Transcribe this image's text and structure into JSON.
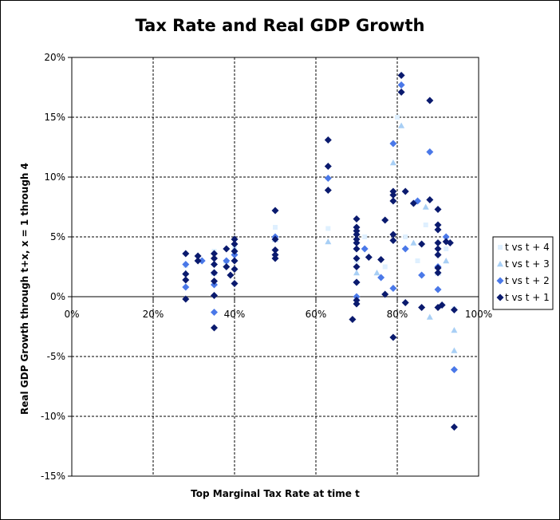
{
  "chart_data": {
    "type": "scatter",
    "title": "Tax Rate and Real GDP Growth",
    "xlabel": "Top Marginal Tax Rate at time t",
    "ylabel": "Real GDP Growth through t+x, x = 1 through 4",
    "xlim": [
      0,
      1
    ],
    "ylim": [
      -0.15,
      0.2
    ],
    "xticks": [
      "0%",
      "20%",
      "40%",
      "60%",
      "80%",
      "100%"
    ],
    "yticks": [
      "20%",
      "15%",
      "10%",
      "5%",
      "0%",
      "-5%",
      "-10%",
      "-15%"
    ],
    "grid": "dashed",
    "legend_position": "right",
    "series": [
      {
        "name": "t vs t + 4",
        "marker": "square",
        "color": "#dff0ff",
        "points": [
          [
            0.28,
            0.026
          ],
          [
            0.35,
            0.038
          ],
          [
            0.4,
            0.042
          ],
          [
            0.5,
            0.058
          ],
          [
            0.63,
            0.057
          ],
          [
            0.7,
            0.03
          ],
          [
            0.72,
            0.05
          ],
          [
            0.77,
            0.025
          ],
          [
            0.8,
            0.15
          ],
          [
            0.82,
            0.05
          ],
          [
            0.85,
            0.03
          ],
          [
            0.87,
            0.06
          ],
          [
            0.9,
            0.035
          ],
          [
            0.92,
            0.04
          ],
          [
            0.94,
            -0.01
          ]
        ]
      },
      {
        "name": "t vs t + 3",
        "marker": "triangle",
        "color": "#a8cff5",
        "points": [
          [
            0.28,
            0.02
          ],
          [
            0.35,
            0.02
          ],
          [
            0.38,
            0.03
          ],
          [
            0.4,
            0.04
          ],
          [
            0.5,
            0.048
          ],
          [
            0.63,
            0.046
          ],
          [
            0.7,
            0.02
          ],
          [
            0.75,
            0.02
          ],
          [
            0.79,
            0.112
          ],
          [
            0.81,
            0.143
          ],
          [
            0.84,
            0.045
          ],
          [
            0.87,
            0.075
          ],
          [
            0.88,
            -0.017
          ],
          [
            0.9,
            0.02
          ],
          [
            0.92,
            0.03
          ],
          [
            0.94,
            -0.028
          ],
          [
            0.94,
            -0.045
          ]
        ]
      },
      {
        "name": "t vs t + 2",
        "marker": "diamond",
        "color": "#4a78e8",
        "points": [
          [
            0.28,
            0.027
          ],
          [
            0.28,
            0.008
          ],
          [
            0.32,
            0.03
          ],
          [
            0.35,
            0.02
          ],
          [
            0.35,
            0.01
          ],
          [
            0.35,
            -0.013
          ],
          [
            0.38,
            0.03
          ],
          [
            0.4,
            0.035
          ],
          [
            0.5,
            0.05
          ],
          [
            0.63,
            0.099
          ],
          [
            0.7,
            0.012
          ],
          [
            0.7,
            0.0
          ],
          [
            0.72,
            0.04
          ],
          [
            0.76,
            0.016
          ],
          [
            0.79,
            0.128
          ],
          [
            0.79,
            0.007
          ],
          [
            0.81,
            0.177
          ],
          [
            0.82,
            0.04
          ],
          [
            0.85,
            0.08
          ],
          [
            0.86,
            0.018
          ],
          [
            0.88,
            0.121
          ],
          [
            0.9,
            0.025
          ],
          [
            0.9,
            0.006
          ],
          [
            0.92,
            0.05
          ],
          [
            0.94,
            -0.061
          ]
        ]
      },
      {
        "name": "t vs t + 1",
        "marker": "diamond",
        "color": "#0a1a6e",
        "points": [
          [
            0.28,
            0.036
          ],
          [
            0.28,
            0.019
          ],
          [
            0.28,
            0.014
          ],
          [
            0.28,
            -0.002
          ],
          [
            0.31,
            0.034
          ],
          [
            0.31,
            0.03
          ],
          [
            0.35,
            0.036
          ],
          [
            0.35,
            0.032
          ],
          [
            0.35,
            0.027
          ],
          [
            0.35,
            0.02
          ],
          [
            0.35,
            0.013
          ],
          [
            0.35,
            0.001
          ],
          [
            0.35,
            -0.026
          ],
          [
            0.38,
            0.04
          ],
          [
            0.38,
            0.025
          ],
          [
            0.39,
            0.018
          ],
          [
            0.4,
            0.048
          ],
          [
            0.4,
            0.044
          ],
          [
            0.4,
            0.038
          ],
          [
            0.4,
            0.03
          ],
          [
            0.4,
            0.023
          ],
          [
            0.4,
            0.011
          ],
          [
            0.5,
            0.072
          ],
          [
            0.5,
            0.048
          ],
          [
            0.5,
            0.039
          ],
          [
            0.5,
            0.035
          ],
          [
            0.5,
            0.032
          ],
          [
            0.63,
            0.131
          ],
          [
            0.63,
            0.109
          ],
          [
            0.63,
            0.089
          ],
          [
            0.7,
            0.065
          ],
          [
            0.7,
            0.058
          ],
          [
            0.7,
            0.055
          ],
          [
            0.7,
            0.052
          ],
          [
            0.7,
            0.048
          ],
          [
            0.7,
            0.045
          ],
          [
            0.7,
            0.04
          ],
          [
            0.7,
            0.032
          ],
          [
            0.7,
            0.025
          ],
          [
            0.7,
            0.012
          ],
          [
            0.7,
            -0.003
          ],
          [
            0.7,
            -0.006
          ],
          [
            0.69,
            -0.019
          ],
          [
            0.73,
            0.033
          ],
          [
            0.76,
            0.031
          ],
          [
            0.77,
            0.064
          ],
          [
            0.77,
            0.002
          ],
          [
            0.79,
            0.088
          ],
          [
            0.79,
            0.085
          ],
          [
            0.79,
            0.08
          ],
          [
            0.79,
            0.052
          ],
          [
            0.79,
            0.047
          ],
          [
            0.79,
            -0.034
          ],
          [
            0.81,
            0.185
          ],
          [
            0.81,
            0.171
          ],
          [
            0.82,
            0.088
          ],
          [
            0.82,
            -0.005
          ],
          [
            0.84,
            0.078
          ],
          [
            0.86,
            0.044
          ],
          [
            0.86,
            -0.009
          ],
          [
            0.88,
            0.164
          ],
          [
            0.88,
            0.081
          ],
          [
            0.9,
            0.073
          ],
          [
            0.9,
            0.06
          ],
          [
            0.9,
            0.056
          ],
          [
            0.9,
            0.045
          ],
          [
            0.9,
            0.04
          ],
          [
            0.9,
            0.035
          ],
          [
            0.9,
            0.024
          ],
          [
            0.9,
            0.02
          ],
          [
            0.9,
            -0.009
          ],
          [
            0.91,
            -0.007
          ],
          [
            0.92,
            0.046
          ],
          [
            0.93,
            0.045
          ],
          [
            0.94,
            -0.011
          ],
          [
            0.94,
            -0.109
          ]
        ]
      }
    ]
  }
}
